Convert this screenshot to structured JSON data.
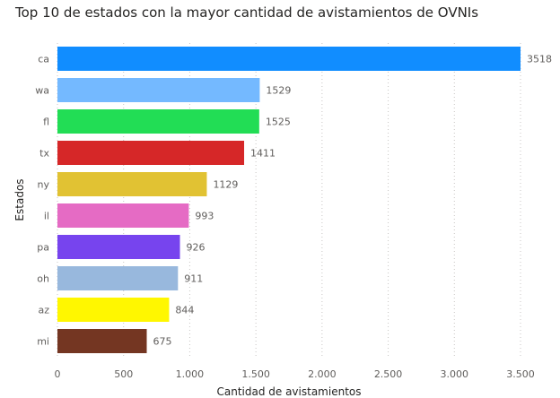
{
  "chart_data": {
    "type": "bar",
    "orientation": "horizontal",
    "title": "Top 10 de estados con la mayor cantidad de avistamientos de OVNIs",
    "xlabel": "Cantidad de avistamientos",
    "ylabel": "Estados",
    "categories": [
      "ca",
      "wa",
      "fl",
      "tx",
      "ny",
      "il",
      "pa",
      "oh",
      "az",
      "mi"
    ],
    "values": [
      3518,
      1529,
      1525,
      1411,
      1129,
      993,
      926,
      911,
      844,
      675
    ],
    "colors": [
      "#118DFF",
      "#74B9FF",
      "#22DD55",
      "#D62728",
      "#E1C233",
      "#E56BC4",
      "#7744EE",
      "#98B8DD",
      "#FFF700",
      "#743622"
    ],
    "xlim": [
      0,
      3500
    ],
    "xticks": [
      0,
      500,
      1000,
      1500,
      2000,
      2500,
      3000,
      3500
    ],
    "xtick_labels": [
      "0",
      "500",
      "1.000",
      "1.500",
      "2.000",
      "2.500",
      "3.000",
      "3.500"
    ],
    "grid": true,
    "legend": "none"
  }
}
